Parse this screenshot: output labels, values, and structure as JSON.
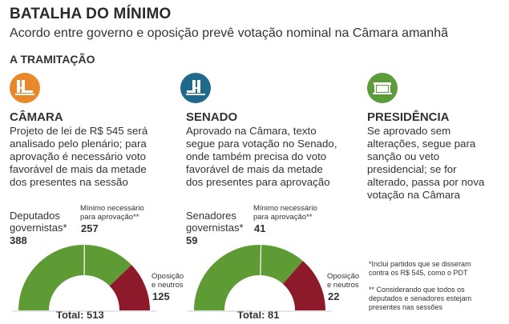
{
  "header": {
    "title": "BATALHA DO MÍNIMO",
    "subtitle": "Acordo entre governo e oposição prevê votação nominal na Câmara amanhã",
    "section": "A TRAMITAÇÃO"
  },
  "colors": {
    "camara": "#e8882a",
    "senado": "#1f6a8a",
    "presidencia": "#5d9a3a",
    "governistas": "#5f9b35",
    "oposicao": "#8c1a2a"
  },
  "stages": {
    "camara": {
      "icon": "chamber-building-icon",
      "heading": "CÂMARA",
      "desc": [
        "Projeto de lei de R$ 545 será",
        "analisado pelo plenário; para",
        "aprovação é necessário voto",
        "favorável de mais da metade",
        "dos presentes na sessão"
      ]
    },
    "senado": {
      "icon": "senate-building-icon",
      "heading": "SENADO",
      "desc": [
        "Aprovado na Câmara, texto",
        "segue para votação no Senado,",
        "onde também precisa do voto",
        "favorável de mais da metade",
        "dos presentes para aprovação"
      ]
    },
    "presidencia": {
      "icon": "palace-icon",
      "heading": "PRESIDÊNCIA",
      "desc": [
        "Se aprovado sem",
        "alterações, segue para",
        "sanção ou veto",
        "presidencial; se for",
        "alterado, passa por nova",
        "votação na Câmara"
      ]
    }
  },
  "charts": {
    "camara": {
      "gov_label": [
        "Deputados",
        "governistas*"
      ],
      "gov_value": "388",
      "min_label": [
        "Mínimo necessário",
        "para aprovação**"
      ],
      "min_value": "257",
      "opp_label": [
        "Oposição",
        "e neutros"
      ],
      "opp_value": "125",
      "total_label": "Total: 513"
    },
    "senado": {
      "gov_label": [
        "Senadores",
        "governistas*"
      ],
      "gov_value": "59",
      "min_label": [
        "Mínimo necessário",
        "para aprovação**"
      ],
      "min_value": "41",
      "opp_label": [
        "Oposição",
        "e neutros"
      ],
      "opp_value": "22",
      "total_label": "Total: 81"
    }
  },
  "chart_data": [
    {
      "type": "pie",
      "categories": [
        "governistas",
        "Oposição e neutros"
      ],
      "values": [
        388,
        125
      ],
      "total": 513,
      "threshold": 257
    },
    {
      "type": "pie",
      "categories": [
        "governistas",
        "Oposição e neutros"
      ],
      "values": [
        59,
        22
      ],
      "total": 81,
      "threshold": 41
    }
  ],
  "notes": {
    "n1": [
      "*Inclui partidos que se disseram",
      "contra os R$ 545, como o PDT"
    ],
    "n2": [
      "** Considerando que todos os",
      "deputados e senadores estejam",
      "presentes nas sessões"
    ]
  }
}
